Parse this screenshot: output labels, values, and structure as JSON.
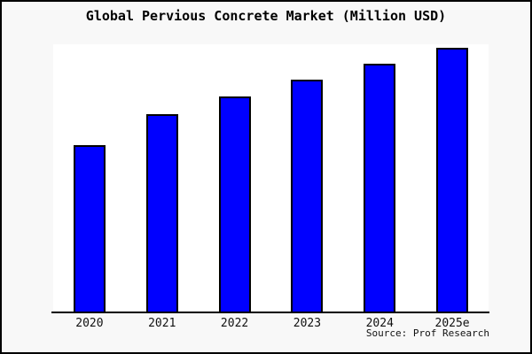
{
  "title": "Global Pervious Concrete Market (Million USD)",
  "source": "Source: Prof Research",
  "colors": {
    "bar_fill": "#0000ff",
    "bar_border": "#000000",
    "background": "#f8f8f8",
    "plot_background": "#ffffff",
    "frame_border": "#000000"
  },
  "chart_data": {
    "type": "bar",
    "title": "Global Pervious Concrete Market (Million USD)",
    "categories": [
      "2020",
      "2021",
      "2022",
      "2023",
      "2024",
      "2025e"
    ],
    "values": [
      63.3,
      75.0,
      81.7,
      88.0,
      94.0,
      100.0
    ],
    "value_basis": "relative bar heights estimated from pixels, tallest bar (2025e) = 100; no y-axis ticks, gridlines or data labels are shown in the image",
    "xlabel": "",
    "ylabel": "",
    "ylim": [
      0,
      101.3
    ],
    "grid": false,
    "legend": "none",
    "annotation": "Source: Prof Research"
  }
}
